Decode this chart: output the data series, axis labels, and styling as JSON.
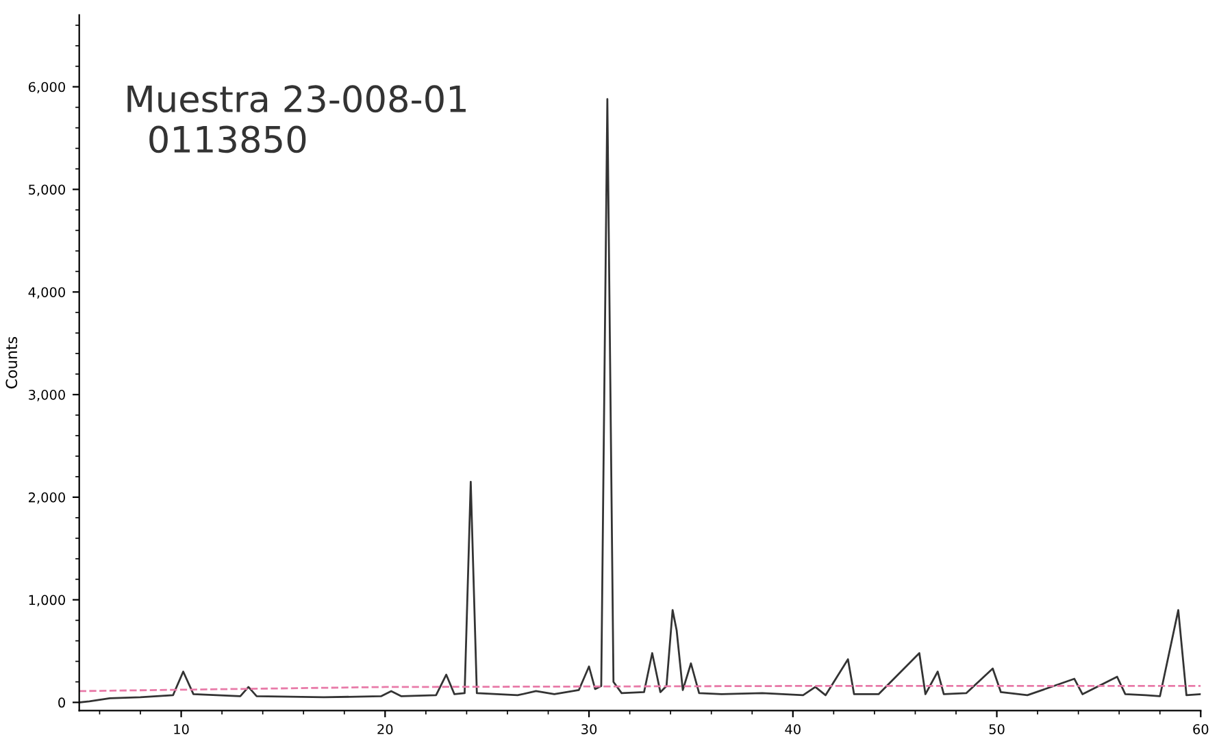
{
  "chart_data": {
    "type": "line",
    "ylabel": "Counts",
    "annotations": [
      "Muestra 23-008-01\n  0113850"
    ],
    "series": [
      {
        "color": "#333333",
        "line_style": "solid",
        "x": [
          5.0,
          5.5,
          6.5,
          8,
          9.6,
          10.1,
          10.6,
          12.9,
          13.3,
          13.7,
          17,
          19.8,
          20.3,
          20.8,
          22.5,
          23.0,
          23.4,
          23.9,
          24.2,
          24.5,
          26.5,
          27.4,
          28.3,
          29.5,
          30.0,
          30.3,
          30.6,
          30.9,
          31.2,
          31.6,
          32.7,
          33.1,
          33.5,
          33.8,
          34.1,
          34.3,
          34.6,
          35.0,
          35.4,
          36.5,
          38.5,
          40.5,
          41.1,
          41.6,
          42.7,
          43.0,
          44.2,
          46.2,
          46.5,
          47.1,
          47.4,
          48.5,
          49.8,
          50.2,
          51.5,
          53.8,
          54.2,
          55.9,
          56.3,
          57.3,
          58.0,
          58.9,
          59.3,
          60.0
        ],
        "values": [
          0,
          10,
          40,
          50,
          70,
          300,
          80,
          60,
          150,
          60,
          50,
          60,
          110,
          60,
          70,
          270,
          80,
          90,
          2150,
          90,
          70,
          110,
          80,
          120,
          350,
          130,
          160,
          5880,
          200,
          90,
          100,
          480,
          100,
          160,
          900,
          700,
          120,
          380,
          90,
          80,
          90,
          70,
          150,
          70,
          420,
          80,
          80,
          480,
          80,
          300,
          80,
          90,
          330,
          100,
          70,
          230,
          80,
          250,
          80,
          70,
          60,
          900,
          70,
          80
        ]
      },
      {
        "color": "#e87aa8",
        "line_style": "dashed",
        "x": [
          5.0,
          20,
          40,
          60.0
        ],
        "values": [
          110,
          150,
          160,
          160
        ]
      }
    ],
    "xlim": [
      5,
      60
    ],
    "ylim": [
      -80,
      6700
    ],
    "xticks": [
      10,
      20,
      30,
      40,
      50,
      60
    ],
    "yticks": [
      0,
      {
        "value": 1000,
        "label": "1,000"
      },
      {
        "value": 2000,
        "label": "2,000"
      },
      {
        "value": 3000,
        "label": "3,000"
      },
      {
        "value": 4000,
        "label": "4,000"
      },
      {
        "value": 5000,
        "label": "5,000"
      },
      {
        "value": 6000,
        "label": "6,000"
      }
    ],
    "grid": false,
    "legend": false
  }
}
